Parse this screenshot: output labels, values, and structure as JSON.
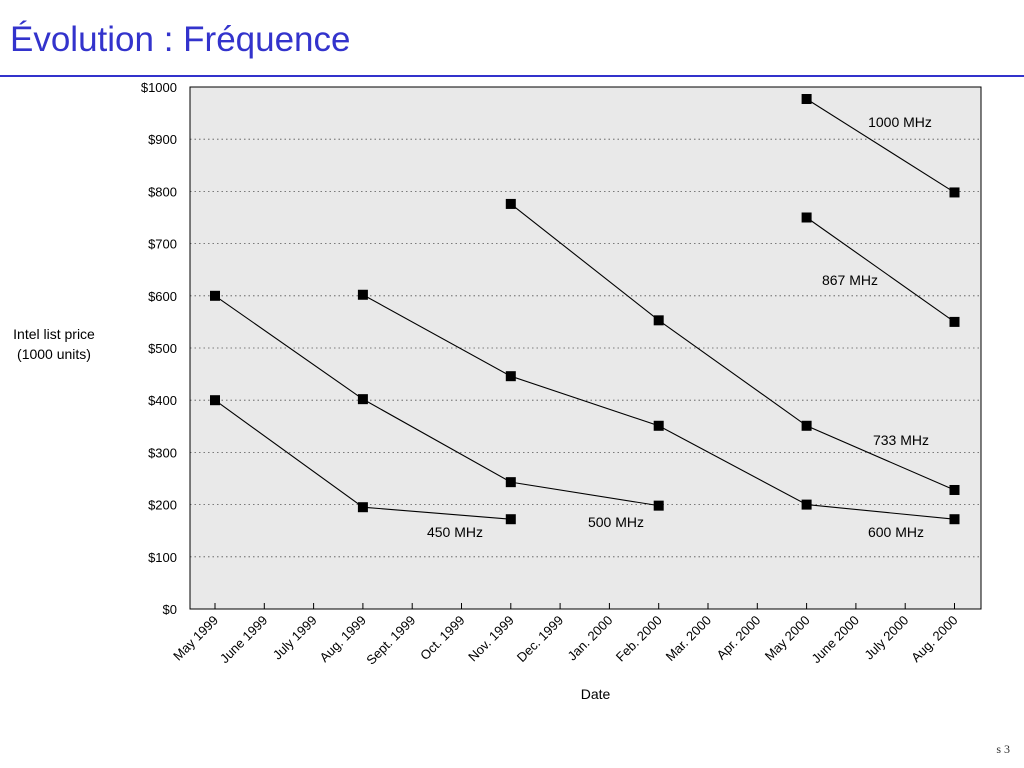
{
  "slide": {
    "title": "Évolution : Fréquence",
    "footer": "s 3"
  },
  "colors": {
    "title": "#3333cc",
    "plot_background": "#e9e9e9",
    "series": "#000000"
  },
  "chart_data": {
    "type": "line",
    "title": "",
    "xlabel": "Date",
    "ylabel": "Intel list price (1000 units)",
    "ylim": [
      0,
      1000
    ],
    "grid": "horizontal dotted",
    "x": [
      "May 1999",
      "June 1999",
      "July 1999",
      "Aug. 1999",
      "Sept. 1999",
      "Oct. 1999",
      "Nov. 1999",
      "Dec. 1999",
      "Jan. 2000",
      "Feb. 2000",
      "Mar. 2000",
      "Apr. 2000",
      "May 2000",
      "June 2000",
      "July 2000",
      "Aug. 2000"
    ],
    "yticks": [
      "$0",
      "$100",
      "$200",
      "$300",
      "$400",
      "$500",
      "$600",
      "$700",
      "$800",
      "$900",
      "$1000"
    ],
    "series": [
      {
        "name": "450 MHz",
        "points": [
          [
            "May 1999",
            400
          ],
          [
            "Aug. 1999",
            195
          ],
          [
            "Nov. 1999",
            172
          ]
        ]
      },
      {
        "name": "500 MHz",
        "points": [
          [
            "May 1999",
            600
          ],
          [
            "Aug. 1999",
            402
          ],
          [
            "Nov. 1999",
            243
          ],
          [
            "Feb. 2000",
            198
          ]
        ]
      },
      {
        "name": "600 MHz",
        "points": [
          [
            "Aug. 1999",
            602
          ],
          [
            "Nov. 1999",
            446
          ],
          [
            "Feb. 2000",
            351
          ],
          [
            "May 2000",
            200
          ],
          [
            "Aug. 2000",
            172
          ]
        ]
      },
      {
        "name": "733 MHz",
        "points": [
          [
            "Nov. 1999",
            776
          ],
          [
            "Feb. 2000",
            553
          ],
          [
            "May 2000",
            351
          ],
          [
            "Aug. 2000",
            228
          ]
        ]
      },
      {
        "name": "867 MHz",
        "points": [
          [
            "May 2000",
            750
          ],
          [
            "Aug. 2000",
            550
          ]
        ]
      },
      {
        "name": "1000 MHz",
        "points": [
          [
            "May 2000",
            977
          ],
          [
            "Aug. 2000",
            798
          ]
        ]
      }
    ],
    "ylabel_lines": [
      "Intel list price",
      "(1000 units)"
    ]
  }
}
